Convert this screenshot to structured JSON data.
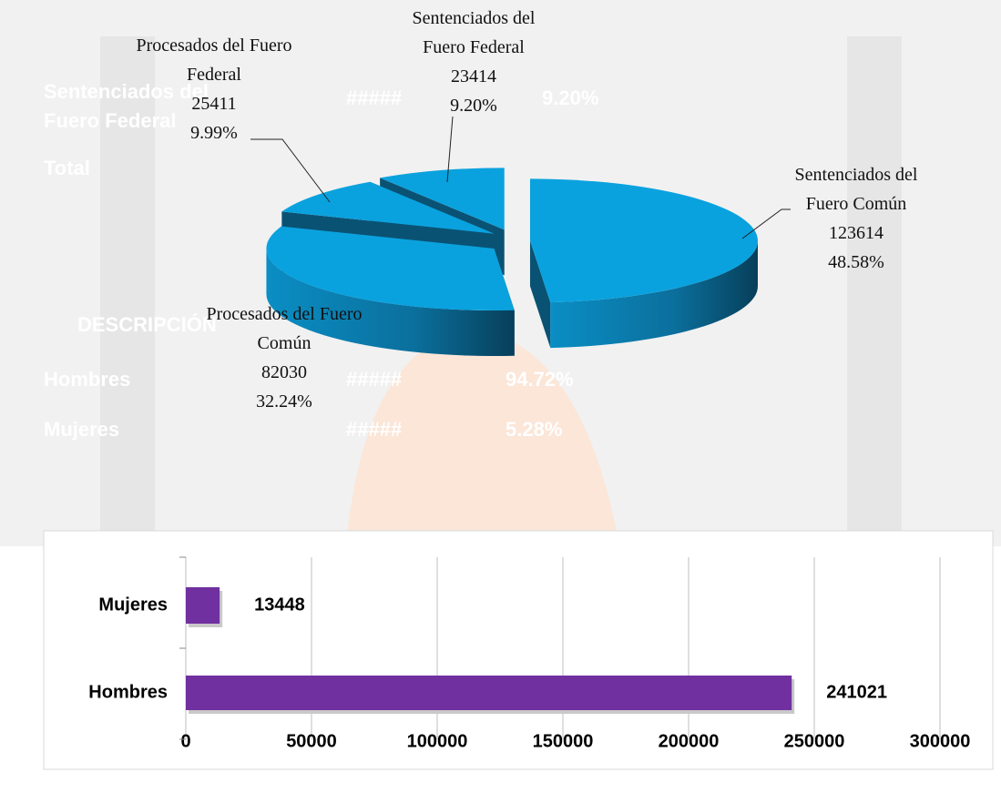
{
  "background_text": [
    "Sentenciados del",
    "Fuero Federal",
    "#####",
    "9.20%",
    "Total",
    "DESCRIPCIÓN",
    "Hombres",
    "Mujeres",
    "#####",
    "94.72%",
    "#####",
    "5.28%"
  ],
  "chart_data": [
    {
      "type": "pie3d",
      "categories": [
        "Sentenciados del Fuero Común",
        "Procesados del Fuero Común",
        "Procesados del Fuero Federal",
        "Sentenciados del Fuero Federal"
      ],
      "values": [
        123614,
        82030,
        25411,
        23414
      ],
      "percent_labels": [
        "48.58%",
        "32.24%",
        "9.99%",
        "9.20%"
      ],
      "color": "#0aa2de"
    },
    {
      "type": "hbar",
      "categories": [
        "Hombres",
        "Mujeres"
      ],
      "values": [
        241021,
        13448
      ],
      "color": "#7030a0",
      "xlim": [
        0,
        300000
      ],
      "xticks": [
        0,
        50000,
        100000,
        150000,
        200000,
        250000,
        300000
      ],
      "grid": true
    }
  ]
}
